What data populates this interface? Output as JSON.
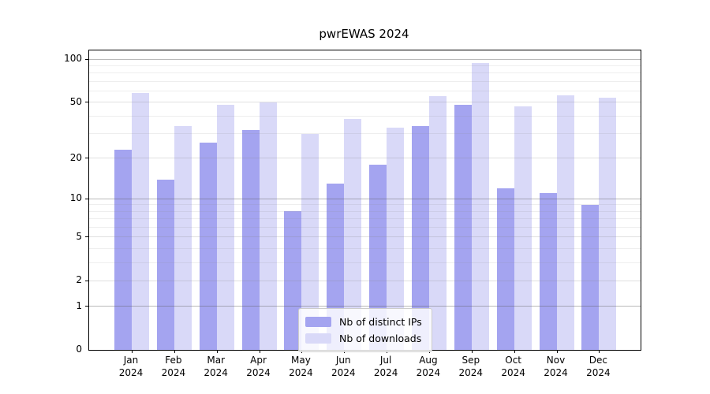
{
  "chart_data": {
    "type": "bar",
    "title": "pwrEWAS 2024",
    "categories": [
      "Jan",
      "Feb",
      "Mar",
      "Apr",
      "May",
      "Jun",
      "Jul",
      "Aug",
      "Sep",
      "Oct",
      "Nov",
      "Dec"
    ],
    "year_label": "2024",
    "series": [
      {
        "name": "Nb of distinct IPs",
        "color": "#a4a4f0",
        "values": [
          23,
          14,
          26,
          32,
          8,
          13,
          18,
          34,
          48,
          12,
          11,
          9
        ]
      },
      {
        "name": "Nb of downloads",
        "color": "#d9d9f8",
        "values": [
          58,
          34,
          48,
          50,
          30,
          38,
          33,
          55,
          94,
          47,
          56,
          54
        ]
      }
    ],
    "y_axis": {
      "scale": "log1p",
      "max": 115,
      "major_ticks": [
        0,
        1,
        2,
        5,
        10,
        20,
        50,
        100
      ],
      "decade_gridlines": [
        1,
        10,
        100
      ],
      "labeled_gridlines": [
        2,
        5,
        20,
        50
      ],
      "minor_gridlines": [
        3,
        4,
        6,
        7,
        8,
        9,
        30,
        40,
        60,
        70,
        80,
        90
      ]
    },
    "x_axis": {
      "tick_format": "month-over-year"
    },
    "legend_position": "lower center",
    "grid": true
  }
}
